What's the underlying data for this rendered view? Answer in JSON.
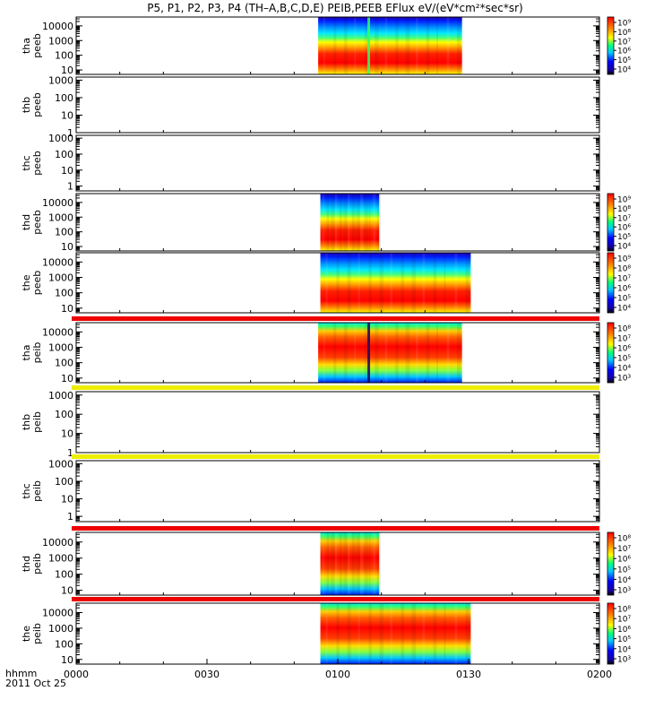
{
  "title": "P5, P1, P2, P3, P4 (TH–A,B,C,D,E) PEIB,PEEB EFlux eV/(eV*cm²*sec*sr)",
  "chart_data": {
    "type": "heatmap",
    "title": "P5, P1, P2, P3, P4 (TH–A,B,C,D,E) PEIB,PEEB EFlux eV/(eV*cm²*sec*sr)",
    "x_label_top": "hhmm",
    "x_label_bottom": "2011 Oct 25",
    "x_ticks": [
      "0000",
      "0030",
      "0100",
      "0130",
      "0200"
    ],
    "x_range_min": [
      0,
      120
    ],
    "colors": {
      "bg": "#ffffff",
      "axis": "#000000",
      "red_bar": "#ee0000",
      "yellow_bar": "#eeee00"
    },
    "panels": [
      {
        "probe": "tha",
        "species": "peeb",
        "y_ticks": [
          "10",
          "100",
          "1000",
          "10000"
        ],
        "ylim": [
          5,
          40000
        ],
        "data_span_min": [
          55.5,
          88.5
        ],
        "gap_min": [
          66.8,
          67.4
        ],
        "style": "electron",
        "colorbar": {
          "labels": [
            "10⁹",
            "10⁸",
            "10⁷",
            "10⁶",
            "10⁵",
            "10⁴"
          ]
        }
      },
      {
        "probe": "thb",
        "species": "peeb",
        "y_ticks": [
          "1",
          "10",
          "100",
          "1000"
        ],
        "ylim": [
          1,
          1500
        ],
        "data_span_min": null,
        "style": "empty",
        "colorbar": null
      },
      {
        "probe": "thc",
        "species": "peeb",
        "y_ticks": [
          "1",
          "10",
          "100",
          "1000"
        ],
        "ylim": [
          0.5,
          1500
        ],
        "data_span_min": null,
        "style": "empty",
        "colorbar": null
      },
      {
        "probe": "thd",
        "species": "peeb",
        "y_ticks": [
          "10",
          "100",
          "1000",
          "10000"
        ],
        "ylim": [
          5,
          40000
        ],
        "data_span_min": [
          56.0,
          69.5
        ],
        "gap_min": null,
        "style": "electron",
        "colorbar": {
          "labels": [
            "10⁹",
            "10⁸",
            "10⁷",
            "10⁶",
            "10⁵",
            "10⁴"
          ]
        }
      },
      {
        "probe": "the",
        "species": "peeb",
        "y_ticks": [
          "10",
          "100",
          "1000",
          "10000"
        ],
        "ylim": [
          5,
          40000
        ],
        "data_span_min": [
          56.0,
          90.5
        ],
        "gap_min": null,
        "style": "electron",
        "colorbar": {
          "labels": [
            "10⁹",
            "10⁸",
            "10⁷",
            "10⁶",
            "10⁵",
            "10⁴"
          ]
        }
      },
      {
        "probe": "tha",
        "species": "peib",
        "y_ticks": [
          "10",
          "100",
          "1000",
          "10000"
        ],
        "ylim": [
          5,
          40000
        ],
        "data_span_min": [
          55.5,
          88.5
        ],
        "gap_min": [
          66.8,
          67.4
        ],
        "style": "ion",
        "top_bar": "red",
        "colorbar": {
          "labels": [
            "10⁸",
            "10⁷",
            "10⁶",
            "10⁵",
            "10⁴",
            "10³"
          ]
        }
      },
      {
        "probe": "thb",
        "species": "peib",
        "y_ticks": [
          "1",
          "10",
          "100",
          "1000"
        ],
        "ylim": [
          1,
          1500
        ],
        "data_span_min": null,
        "style": "empty",
        "top_bar": "yellow",
        "colorbar": null
      },
      {
        "probe": "thc",
        "species": "peib",
        "y_ticks": [
          "1",
          "10",
          "100",
          "1000"
        ],
        "ylim": [
          0.5,
          1500
        ],
        "data_span_min": null,
        "style": "empty",
        "top_bar": "yellow",
        "colorbar": null
      },
      {
        "probe": "thd",
        "species": "peib",
        "y_ticks": [
          "10",
          "100",
          "1000",
          "10000"
        ],
        "ylim": [
          5,
          40000
        ],
        "data_span_min": [
          56.0,
          69.5
        ],
        "gap_min": null,
        "style": "ion",
        "top_bar": "red",
        "colorbar": {
          "labels": [
            "10⁸",
            "10⁷",
            "10⁶",
            "10⁵",
            "10⁴",
            "10³"
          ]
        }
      },
      {
        "probe": "the",
        "species": "peib",
        "y_ticks": [
          "10",
          "100",
          "1000",
          "10000"
        ],
        "ylim": [
          5,
          40000
        ],
        "data_span_min": [
          56.0,
          90.5
        ],
        "gap_min": null,
        "style": "ion",
        "top_bar": "red",
        "colorbar": {
          "labels": [
            "10⁸",
            "10⁷",
            "10⁶",
            "10⁵",
            "10⁴",
            "10³"
          ]
        }
      }
    ]
  }
}
